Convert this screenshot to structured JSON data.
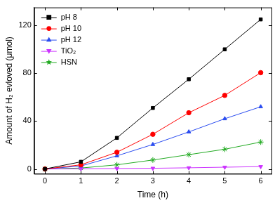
{
  "chart_data": {
    "type": "line",
    "x_label": "Time (h)",
    "y_label": "Amount of H₂ evloved (μmol)",
    "x": [
      0,
      1,
      2,
      3,
      4,
      5,
      6
    ],
    "series": [
      {
        "name": "pH 8",
        "color": "#000000",
        "marker": "square",
        "values": [
          0,
          6,
          26,
          51,
          75,
          100,
          125
        ]
      },
      {
        "name": "pH 10",
        "color": "#ff0000",
        "marker": "circle",
        "values": [
          0,
          3.5,
          14,
          29,
          47,
          61.5,
          80.5
        ]
      },
      {
        "name": "pH 12",
        "color": "#2a4cf0",
        "marker": "triangle",
        "values": [
          0,
          2.5,
          11,
          20.5,
          31,
          42,
          52
        ]
      },
      {
        "name": "TiO₂",
        "color": "#cc33ff",
        "marker": "triangle_down",
        "values": [
          0,
          0.2,
          0.4,
          0.6,
          1,
          1.5,
          2
        ]
      },
      {
        "name": "HSN",
        "color": "#22aa22",
        "marker": "star",
        "values": [
          0,
          0.8,
          3.5,
          7.5,
          12,
          16.5,
          22.5
        ]
      }
    ],
    "xlim": [
      -0.3,
      6.3
    ],
    "xticks": [
      0,
      1,
      2,
      3,
      4,
      5,
      6
    ],
    "ylim": [
      -4,
      135
    ],
    "yticks": [
      0,
      40,
      80,
      120
    ],
    "grid": false,
    "legend": "upper left"
  }
}
